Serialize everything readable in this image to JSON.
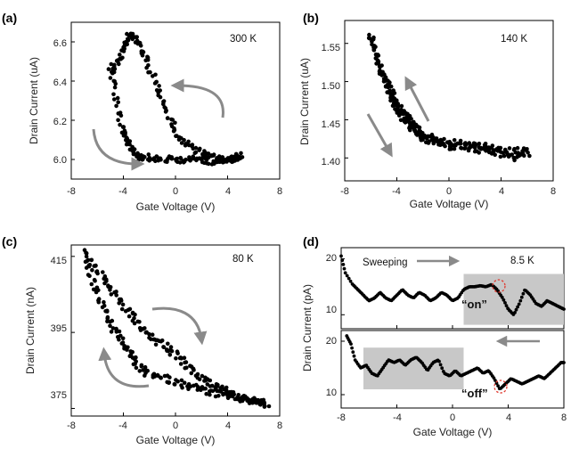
{
  "chart_data": [
    {
      "panel": "(a)",
      "type": "scatter",
      "annotation": "300 K",
      "xlabel": "Gate Voltage (V)",
      "ylabel": "Drain Current (uA)",
      "xlim": [
        -8,
        8
      ],
      "ylim": [
        5.9,
        6.7
      ],
      "xticks": [
        -8,
        -4,
        0,
        4,
        8
      ],
      "yticks": [
        6.0,
        6.2,
        6.4,
        6.6
      ],
      "ytick_labels": [
        "6.0",
        "6.2",
        "6.4",
        "6.6"
      ],
      "sweep_out": {
        "x": [
          -5.0,
          -4.6,
          -4.2,
          -3.8,
          -3.4,
          -3.0,
          -2.6,
          -2.0,
          -1.2,
          -0.4,
          0.4,
          1.2,
          2.0,
          2.8,
          3.6,
          4.4,
          5.0
        ],
        "y": [
          6.48,
          6.33,
          6.17,
          6.1,
          6.06,
          6.03,
          6.01,
          6.01,
          6.0,
          6.0,
          6.0,
          6.0,
          6.0,
          5.99,
          6.0,
          6.0,
          6.02
        ]
      },
      "sweep_back": {
        "x": [
          5.0,
          4.2,
          3.4,
          2.6,
          1.8,
          1.0,
          0.2,
          -0.4,
          -1.0,
          -1.6,
          -2.2,
          -2.8,
          -3.2,
          -3.6,
          -4.0,
          -4.4,
          -5.0
        ],
        "y": [
          6.01,
          6.0,
          6.0,
          6.02,
          6.04,
          6.07,
          6.12,
          6.2,
          6.3,
          6.4,
          6.5,
          6.58,
          6.62,
          6.63,
          6.56,
          6.5,
          6.45
        ]
      },
      "arrows": 2
    },
    {
      "panel": "(b)",
      "type": "scatter",
      "annotation": "140 K",
      "xlabel": "Gate Voltage (V)",
      "ylabel": "Drain Current (uA)",
      "xlim": [
        -8,
        8
      ],
      "ylim": [
        1.37,
        1.58
      ],
      "xticks": [
        -8,
        -4,
        0,
        4,
        8
      ],
      "yticks": [
        1.4,
        1.45,
        1.5,
        1.55
      ],
      "ytick_labels": [
        "1.40",
        "1.45",
        "1.50",
        "1.55"
      ],
      "sweep_out": {
        "x": [
          -6.0,
          -5.5,
          -5.0,
          -4.5,
          -4.0,
          -3.5,
          -3.0,
          -2.5,
          -2.0,
          -1.0,
          0.0,
          1.0,
          2.0,
          3.0,
          4.0,
          5.0,
          6.0
        ],
        "y": [
          1.56,
          1.53,
          1.5,
          1.48,
          1.465,
          1.45,
          1.44,
          1.43,
          1.425,
          1.42,
          1.415,
          1.415,
          1.41,
          1.41,
          1.405,
          1.4,
          1.41
        ]
      },
      "sweep_back": {
        "x": [
          6.0,
          5.0,
          4.0,
          3.0,
          2.0,
          1.0,
          0.0,
          -1.0,
          -2.0,
          -2.5,
          -3.0,
          -3.5,
          -4.0,
          -4.5,
          -5.0,
          -5.5,
          -6.0
        ],
        "y": [
          1.405,
          1.41,
          1.41,
          1.415,
          1.415,
          1.42,
          1.42,
          1.425,
          1.43,
          1.44,
          1.45,
          1.46,
          1.475,
          1.49,
          1.505,
          1.525,
          1.56
        ]
      },
      "arrows": 2
    },
    {
      "panel": "(c)",
      "type": "scatter",
      "annotation": "80 K",
      "xlabel": "Gate Voltage (V)",
      "ylabel": "Drain Current (nA)",
      "xlim": [
        -8,
        8
      ],
      "ylim": [
        373,
        418
      ],
      "xticks": [
        -8,
        -4,
        0,
        4,
        8
      ],
      "yticks": [
        375,
        395,
        415
      ],
      "ytick_labels": [
        "375",
        "395",
        "415"
      ],
      "sweep_out": {
        "x": [
          -7.0,
          -6.4,
          -5.8,
          -5.2,
          -4.6,
          -4.0,
          -3.4,
          -2.8,
          -2.0,
          -1.0,
          0.0,
          1.0,
          2.0,
          3.0,
          4.0,
          5.0,
          6.0,
          7.0
        ],
        "y": [
          415,
          409,
          404,
          399,
          395,
          392,
          389,
          386,
          384,
          383,
          382,
          381,
          380,
          379,
          378,
          377.5,
          377,
          376
        ]
      },
      "sweep_back": {
        "x": [
          7.0,
          6.0,
          5.0,
          4.0,
          3.0,
          2.0,
          1.0,
          0.0,
          -1.0,
          -2.0,
          -3.0,
          -4.0,
          -5.0,
          -6.0,
          -7.0
        ],
        "y": [
          376,
          377,
          378,
          379,
          381,
          383,
          386,
          389,
          392,
          394,
          398,
          402,
          407,
          411,
          416
        ]
      },
      "arrows": 2
    },
    {
      "panel": "(d)",
      "type": "line",
      "annotation": "8.5 K",
      "xlabel": "Gate Voltage (V)",
      "ylabel": "Drain Current (pA)",
      "xlim": [
        -8,
        8
      ],
      "xticks": [
        -8,
        -4,
        0,
        4,
        8
      ],
      "top": {
        "ylim": [
          7.5,
          22
        ],
        "yticks": [
          10,
          20
        ],
        "ytick_labels": [
          "10",
          "20"
        ],
        "label_sweep": "Sweeping",
        "label_state": "“on”",
        "shade_x": [
          0.8,
          8.0
        ],
        "shade_y": [
          8.2,
          17.3
        ],
        "x": [
          -8.0,
          -7.7,
          -7.2,
          -6.8,
          -6.4,
          -6.0,
          -5.6,
          -5.2,
          -4.8,
          -4.4,
          -4.0,
          -3.6,
          -3.2,
          -2.8,
          -2.4,
          -2.0,
          -1.6,
          -1.2,
          -0.8,
          -0.4,
          0.0,
          0.4,
          0.8,
          1.2,
          1.6,
          2.0,
          2.4,
          2.8,
          3.2,
          3.6,
          4.0,
          4.4,
          4.8,
          5.2,
          5.6,
          6.0,
          6.4,
          6.8,
          7.2,
          7.6,
          8.0
        ],
        "y": [
          20.5,
          17.5,
          15.5,
          14.5,
          13.5,
          12.5,
          13.0,
          14.0,
          13.0,
          12.5,
          13.5,
          14.5,
          13.5,
          13.0,
          14.0,
          13.5,
          12.5,
          13.0,
          14.0,
          13.5,
          12.5,
          13.0,
          14.5,
          15.0,
          15.0,
          15.2,
          15.0,
          15.4,
          14.5,
          13.0,
          11.0,
          10.0,
          12.0,
          14.5,
          13.5,
          12.0,
          11.5,
          12.5,
          12.0,
          11.5,
          11.0
        ]
      },
      "bottom": {
        "ylim": [
          7.5,
          22
        ],
        "yticks": [
          10,
          20
        ],
        "ytick_labels": [
          "10",
          "20"
        ],
        "label_state": "“off”",
        "shade_x": [
          -6.4,
          0.8
        ],
        "shade_y": [
          11.0,
          18.8
        ],
        "x": [
          -7.6,
          -7.3,
          -7.0,
          -6.6,
          -6.2,
          -5.8,
          -5.4,
          -5.0,
          -4.6,
          -4.2,
          -3.8,
          -3.4,
          -3.0,
          -2.6,
          -2.2,
          -1.8,
          -1.4,
          -1.0,
          -0.6,
          -0.2,
          0.2,
          0.6,
          1.0,
          1.4,
          1.8,
          2.2,
          2.6,
          3.0,
          3.4,
          3.8,
          4.2,
          4.6,
          5.0,
          5.4,
          5.8,
          6.2,
          6.6,
          7.0,
          7.4,
          7.8,
          8.0
        ],
        "y": [
          21.0,
          19.5,
          16.5,
          15.0,
          15.5,
          14.0,
          13.5,
          15.0,
          16.5,
          16.0,
          16.5,
          15.5,
          16.5,
          17.0,
          16.0,
          14.5,
          16.0,
          16.5,
          14.0,
          13.5,
          14.5,
          13.5,
          14.0,
          14.5,
          15.0,
          14.0,
          14.5,
          13.0,
          11.0,
          12.0,
          13.0,
          12.5,
          12.0,
          12.5,
          13.0,
          13.5,
          13.0,
          14.0,
          15.0,
          16.0,
          16.0
        ]
      }
    }
  ]
}
